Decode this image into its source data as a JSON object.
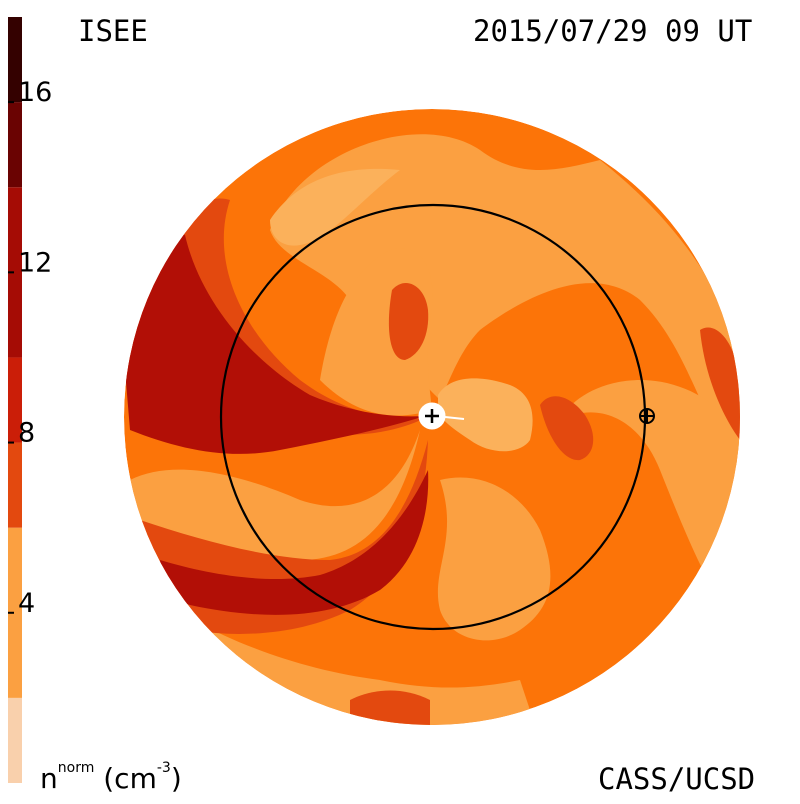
{
  "header": {
    "left_title": "ISEE",
    "right_title": "2015/07/29 09 UT"
  },
  "footer": {
    "credit": "CASS/UCSD",
    "units_label_base": "n",
    "units_label_sup": "norm",
    "units_label_unit_open": " (cm",
    "units_label_unit_sup": "-3",
    "units_label_unit_close": ")"
  },
  "chart_data": {
    "type": "heatmap",
    "title": "",
    "colorbar": {
      "ticks": [
        "4",
        "8",
        "12",
        "16"
      ],
      "tick_values": [
        4,
        8,
        12,
        16
      ],
      "range": [
        0,
        18
      ],
      "levels": [
        {
          "from": 0,
          "to": 2,
          "color": "#f9d0ac"
        },
        {
          "from": 2,
          "to": 6,
          "color": "#fba041"
        },
        {
          "from": 6,
          "to": 8,
          "color": "#e3490f"
        },
        {
          "from": 8,
          "to": 10,
          "color": "#cb1e08"
        },
        {
          "from": 10,
          "to": 14,
          "color": "#a50c05"
        },
        {
          "from": 14,
          "to": 16,
          "color": "#6a0302"
        },
        {
          "from": 16,
          "to": 18,
          "color": "#340100"
        }
      ]
    },
    "map": {
      "base_color": "#fc7408",
      "light_color": "#fba041",
      "mid_color": "#e3490f",
      "dark_color": "#b20f06",
      "pale_color": "#fbb15b",
      "earth_orbit": true,
      "sun_marker": "plus-in-circle",
      "earth_marker": "circle-plus"
    }
  }
}
